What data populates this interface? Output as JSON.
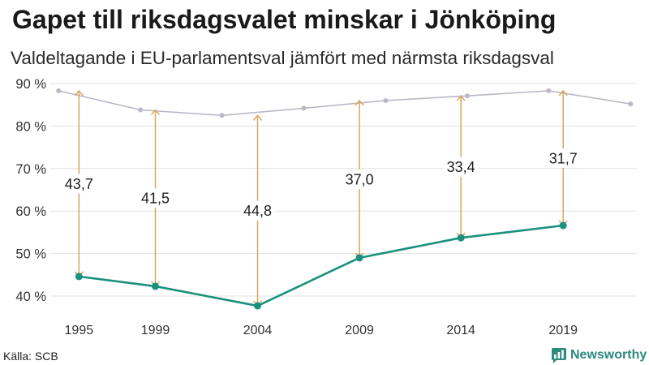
{
  "chart_data": {
    "type": "line",
    "title": "Gapet till riksdagsvalet minskar i Jönköping",
    "subtitle": "Valdeltagande i EU-parlamentsval jämfört med närmsta riksdagsval",
    "source": "Källa: SCB",
    "xlabel": "",
    "ylabel": "",
    "xlim": [
      "1994-04-23",
      "2023-01-01"
    ],
    "ylim": [
      40,
      90
    ],
    "xticks": [
      "1995-09-17",
      "1999-06-13",
      "2004-06-13",
      "2009-06-07",
      "2014-05-25",
      "2019-05-26"
    ],
    "xtick_labels": [
      "1995",
      "1999",
      "2004",
      "2009",
      "2014",
      "2019"
    ],
    "yticks": [
      40,
      50,
      60,
      70,
      80,
      90
    ],
    "ytick_labels": [
      "40 %",
      "50 %",
      "60 %",
      "70 %",
      "80 %",
      "90 %"
    ],
    "grid": true,
    "gridline_color": "#e1e1e1",
    "gap_arrow_color": "#d8a65f",
    "series": [
      {
        "color": "#bbb7c7",
        "points": [
          {
            "x": "1994-09-18",
            "y": 88.3
          },
          {
            "x": "1998-09-20",
            "y": 83.8
          },
          {
            "x": "2002-09-15",
            "y": 82.5
          },
          {
            "x": "2006-09-17",
            "y": 84.2
          },
          {
            "x": "2010-09-19",
            "y": 86.0
          },
          {
            "x": "2014-09-14",
            "y": 87.1
          },
          {
            "x": "2018-09-09",
            "y": 88.3
          },
          {
            "x": "2022-09-11",
            "y": 85.2
          }
        ]
      },
      {
        "color": "#1a917d",
        "points": [
          {
            "x": "1995-09-17",
            "y": 44.6,
            "gap": 43.7,
            "gap_label": "43,7"
          },
          {
            "x": "1999-06-13",
            "y": 42.3,
            "gap": 41.5,
            "gap_label": "41,5"
          },
          {
            "x": "2004-06-13",
            "y": 37.7,
            "gap": 44.8,
            "gap_label": "44,8"
          },
          {
            "x": "2009-06-07",
            "y": 49.0,
            "gap": 37.0,
            "gap_label": "37,0"
          },
          {
            "x": "2014-05-25",
            "y": 53.7,
            "gap": 33.4,
            "gap_label": "33,4"
          },
          {
            "x": "2019-05-26",
            "y": 56.6,
            "gap": 31.7,
            "gap_label": "31,7"
          }
        ]
      }
    ]
  },
  "branding": {
    "name": "Newsworthy",
    "icon": "newsworthy-logo-icon",
    "color": "#2b8a7d"
  }
}
